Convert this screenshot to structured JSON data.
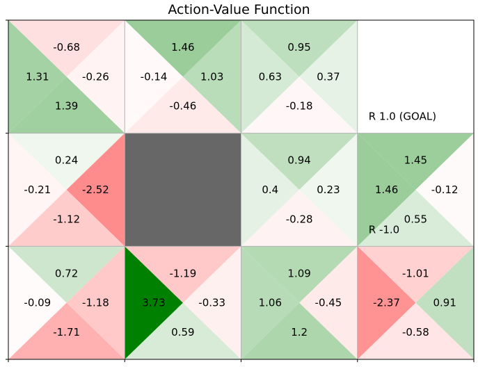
{
  "chart_data": {
    "type": "heatmap",
    "title": "Action-Value Function",
    "rows": 3,
    "cols": 4,
    "cells": [
      {
        "row": 0,
        "col": 0,
        "kind": "q",
        "up": -0.68,
        "left": 1.31,
        "right": -0.26,
        "down": 1.39
      },
      {
        "row": 0,
        "col": 1,
        "kind": "q",
        "up": 1.46,
        "left": -0.14,
        "right": 1.03,
        "down": -0.46
      },
      {
        "row": 0,
        "col": 2,
        "kind": "q",
        "up": 0.95,
        "left": 0.63,
        "right": 0.37,
        "down": -0.18
      },
      {
        "row": 0,
        "col": 3,
        "kind": "terminal",
        "note": "R 1.0 (GOAL)"
      },
      {
        "row": 1,
        "col": 0,
        "kind": "q",
        "up": 0.24,
        "left": -0.21,
        "right": -2.52,
        "down": -1.12
      },
      {
        "row": 1,
        "col": 1,
        "kind": "wall"
      },
      {
        "row": 1,
        "col": 2,
        "kind": "q",
        "up": 0.94,
        "left": 0.4,
        "right": 0.23,
        "down": -0.28
      },
      {
        "row": 1,
        "col": 3,
        "kind": "q",
        "up": 1.45,
        "left": 1.46,
        "right": -0.12,
        "down": 0.55,
        "note": "R -1.0"
      },
      {
        "row": 2,
        "col": 0,
        "kind": "q",
        "up": 0.72,
        "left": -0.09,
        "right": -1.18,
        "down": -1.71
      },
      {
        "row": 2,
        "col": 1,
        "kind": "q",
        "up": -1.19,
        "left": 3.73,
        "right": -0.33,
        "down": 0.59
      },
      {
        "row": 2,
        "col": 2,
        "kind": "q",
        "up": 1.09,
        "left": 1.06,
        "right": -0.45,
        "down": 1.2
      },
      {
        "row": 2,
        "col": 3,
        "kind": "q",
        "up": -1.01,
        "left": -2.37,
        "right": 0.91,
        "down": -0.58
      }
    ],
    "colors": {
      "positive": "#008000",
      "negative": "#ff5555",
      "wall": "#676767",
      "border": "#b3b3b3"
    },
    "grid": false,
    "xlabel": "",
    "ylabel": ""
  }
}
